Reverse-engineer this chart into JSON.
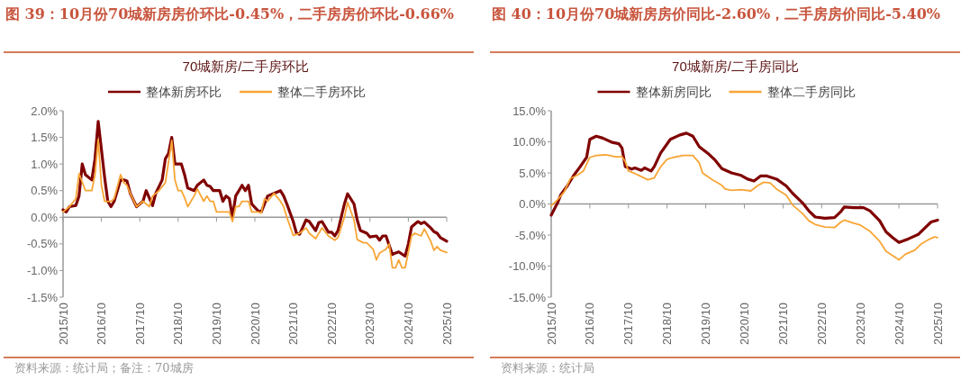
{
  "chart_data": [
    {
      "type": "line",
      "title": "图 39：10月份70城新房房价环比-0.45%，二手房房价环比-0.66%",
      "subtitle": "70城新房/二手房环比",
      "annotations": [
        "资料来源：统计局；备注：70城房"
      ],
      "legend": "top",
      "xlim": [
        "2015-10",
        "2025-10"
      ],
      "ylim": [
        -1.5,
        2.0
      ],
      "xticks": [
        {
          "value": "2015-10",
          "label": "2015/10"
        },
        {
          "value": "2016-10",
          "label": "2016/10"
        },
        {
          "value": "2017-10",
          "label": "2017/10"
        },
        {
          "value": "2018-10",
          "label": "2018/10"
        },
        {
          "value": "2019-10",
          "label": "2019/10"
        },
        {
          "value": "2020-10",
          "label": "2020/10"
        },
        {
          "value": "2021-10",
          "label": "2021/10"
        },
        {
          "value": "2022-10",
          "label": "2022/10"
        },
        {
          "value": "2023-10",
          "label": "2023/10"
        },
        {
          "value": "2024-10",
          "label": "2024/10"
        },
        {
          "value": "2025-10",
          "label": "2025/10"
        }
      ],
      "yticks": [
        {
          "value": -1.5,
          "label": "-1.5%"
        },
        {
          "value": -1.0,
          "label": "-1.0%"
        },
        {
          "value": -0.5,
          "label": "-0.5%"
        },
        {
          "value": 0,
          "label": "0.0%"
        },
        {
          "value": 0.5,
          "label": "0.5%"
        },
        {
          "value": 1.0,
          "label": "1.0%"
        },
        {
          "value": 1.5,
          "label": "1.5%"
        },
        {
          "value": 2.0,
          "label": "2.0%"
        }
      ],
      "series": [
        {
          "name": "整体新房环比",
          "color": "#800000",
          "x": [
            "2015-10",
            "2015-11",
            "2015-12",
            "2016-02",
            "2016-03",
            "2016-04",
            "2016-05",
            "2016-07",
            "2016-08",
            "2016-09",
            "2016-11",
            "2016-12",
            "2017-01",
            "2017-02",
            "2017-04",
            "2017-05",
            "2017-06",
            "2017-07",
            "2017-09",
            "2017-11",
            "2017-12",
            "2018-02",
            "2018-03",
            "2018-05",
            "2018-06",
            "2018-07",
            "2018-08",
            "2018-09",
            "2018-11",
            "2018-12",
            "2019-01",
            "2019-03",
            "2019-04",
            "2019-06",
            "2019-07",
            "2019-08",
            "2019-09",
            "2019-11",
            "2019-12",
            "2020-01",
            "2020-02",
            "2020-03",
            "2020-04",
            "2020-05",
            "2020-06",
            "2020-07",
            "2020-08",
            "2020-09",
            "2020-11",
            "2020-12",
            "2021-02",
            "2021-04",
            "2021-06",
            "2021-07",
            "2021-08",
            "2021-10",
            "2021-11",
            "2021-12",
            "2022-02",
            "2022-03",
            "2022-05",
            "2022-06",
            "2022-07",
            "2022-09",
            "2022-10",
            "2022-11",
            "2022-12",
            "2023-02",
            "2023-03",
            "2023-05",
            "2023-06",
            "2023-07",
            "2023-09",
            "2023-10",
            "2023-12",
            "2024-01",
            "2024-02",
            "2024-03",
            "2024-05",
            "2024-06",
            "2024-07",
            "2024-09",
            "2024-10",
            "2024-11",
            "2025-01",
            "2025-02",
            "2025-03",
            "2025-05",
            "2025-06",
            "2025-07",
            "2025-08",
            "2025-10"
          ],
          "values": [
            0.14,
            0.1,
            0.2,
            0.22,
            0.4,
            1.0,
            0.8,
            0.7,
            1.1,
            1.8,
            0.75,
            0.3,
            0.2,
            0.3,
            0.7,
            0.7,
            0.68,
            0.45,
            0.2,
            0.3,
            0.5,
            0.22,
            0.45,
            0.7,
            1.1,
            1.2,
            1.5,
            1.0,
            1.0,
            0.8,
            0.55,
            0.5,
            0.6,
            0.7,
            0.6,
            0.58,
            0.5,
            0.5,
            0.3,
            0.4,
            0.35,
            0.0,
            0.4,
            0.5,
            0.6,
            0.5,
            0.6,
            0.25,
            0.12,
            0.1,
            0.4,
            0.45,
            0.5,
            0.4,
            0.25,
            -0.08,
            -0.3,
            -0.32,
            -0.05,
            -0.08,
            -0.25,
            -0.1,
            -0.08,
            -0.28,
            -0.28,
            -0.35,
            -0.25,
            0.25,
            0.44,
            0.25,
            -0.05,
            -0.25,
            -0.3,
            -0.37,
            -0.35,
            -0.43,
            -0.35,
            -0.35,
            -0.7,
            -0.67,
            -0.65,
            -0.73,
            -0.5,
            -0.18,
            -0.08,
            -0.12,
            -0.09,
            -0.2,
            -0.27,
            -0.3,
            -0.38,
            -0.45
          ]
        },
        {
          "name": "整体二手房环比",
          "color": "#f8a535",
          "x": [
            "2015-10",
            "2015-12",
            "2016-02",
            "2016-03",
            "2016-05",
            "2016-07",
            "2016-08",
            "2016-09",
            "2016-10",
            "2016-11",
            "2017-01",
            "2017-02",
            "2017-04",
            "2017-05",
            "2017-06",
            "2017-07",
            "2017-09",
            "2017-11",
            "2018-01",
            "2018-02",
            "2018-04",
            "2018-06",
            "2018-08",
            "2018-09",
            "2018-10",
            "2018-11",
            "2018-12",
            "2019-01",
            "2019-03",
            "2019-04",
            "2019-06",
            "2019-07",
            "2019-08",
            "2019-09",
            "2019-10",
            "2020-01",
            "2020-02",
            "2020-03",
            "2020-04",
            "2020-05",
            "2020-06",
            "2020-08",
            "2020-09",
            "2020-11",
            "2020-12",
            "2021-01",
            "2021-02",
            "2021-04",
            "2021-06",
            "2021-07",
            "2021-08",
            "2021-10",
            "2021-12",
            "2022-01",
            "2022-02",
            "2022-03",
            "2022-05",
            "2022-07",
            "2022-09",
            "2022-11",
            "2022-12",
            "2023-02",
            "2023-03",
            "2023-05",
            "2023-06",
            "2023-08",
            "2023-09",
            "2023-11",
            "2023-12",
            "2024-01",
            "2024-03",
            "2024-04",
            "2024-05",
            "2024-06",
            "2024-07",
            "2024-08",
            "2024-09",
            "2024-11",
            "2024-12",
            "2025-02",
            "2025-03",
            "2025-05",
            "2025-06",
            "2025-07",
            "2025-08",
            "2025-10"
          ],
          "values": [
            0.1,
            0.2,
            0.35,
            0.82,
            0.5,
            0.5,
            0.8,
            1.46,
            0.6,
            0.3,
            0.3,
            0.35,
            0.8,
            0.65,
            0.6,
            0.45,
            0.2,
            0.3,
            0.2,
            0.4,
            0.5,
            0.65,
            1.44,
            0.7,
            0.5,
            0.5,
            0.37,
            0.2,
            0.4,
            0.53,
            0.3,
            0.4,
            0.3,
            0.3,
            0.1,
            0.1,
            0.1,
            -0.08,
            0.2,
            0.2,
            0.3,
            0.3,
            0.1,
            0.1,
            0.08,
            0.35,
            0.3,
            0.45,
            0.3,
            0.2,
            0.0,
            -0.34,
            -0.3,
            -0.25,
            -0.2,
            -0.3,
            -0.4,
            -0.2,
            -0.35,
            -0.43,
            -0.38,
            0.0,
            0.28,
            -0.05,
            -0.42,
            -0.48,
            -0.48,
            -0.6,
            -0.8,
            -0.67,
            -0.6,
            -0.5,
            -0.95,
            -0.95,
            -0.8,
            -0.95,
            -0.95,
            -0.35,
            -0.3,
            -0.35,
            -0.22,
            -0.45,
            -0.62,
            -0.55,
            -0.62,
            -0.66
          ]
        }
      ]
    },
    {
      "type": "line",
      "title": "图 40：10月份70城新房房价同比-2.60%，二手房房价同比-5.40%",
      "subtitle": "70城新房/二手房同比",
      "annotations": [
        "资料来源：统计局"
      ],
      "legend": "top",
      "xlim": [
        "2015-10",
        "2025-10"
      ],
      "ylim": [
        -15,
        15
      ],
      "xticks": [
        {
          "value": "2015-10",
          "label": "2015/10"
        },
        {
          "value": "2016-10",
          "label": "2016/10"
        },
        {
          "value": "2017-10",
          "label": "2017/10"
        },
        {
          "value": "2018-10",
          "label": "2018/10"
        },
        {
          "value": "2019-10",
          "label": "2019/10"
        },
        {
          "value": "2020-10",
          "label": "2020/10"
        },
        {
          "value": "2021-10",
          "label": "2021/10"
        },
        {
          "value": "2022-10",
          "label": "2022/10"
        },
        {
          "value": "2023-10",
          "label": "2023/10"
        },
        {
          "value": "2024-10",
          "label": "2024/10"
        },
        {
          "value": "2025-10",
          "label": "2025/10"
        }
      ],
      "yticks": [
        {
          "value": -15,
          "label": "-15.0%"
        },
        {
          "value": -10,
          "label": "-10.0%"
        },
        {
          "value": -5,
          "label": "-5.0%"
        },
        {
          "value": 0,
          "label": "0.0%"
        },
        {
          "value": 5,
          "label": "5.0%"
        },
        {
          "value": 10,
          "label": "10.0%"
        },
        {
          "value": 15,
          "label": "15.0%"
        }
      ],
      "series": [
        {
          "name": "整体新房同比",
          "color": "#800000",
          "x": [
            "2015-10",
            "2015-12",
            "2016-01",
            "2016-03",
            "2016-05",
            "2016-07",
            "2016-09",
            "2016-10",
            "2016-12",
            "2017-02",
            "2017-05",
            "2017-07",
            "2017-08",
            "2017-09",
            "2017-11",
            "2017-12",
            "2018-02",
            "2018-03",
            "2018-05",
            "2018-06",
            "2018-08",
            "2018-11",
            "2019-02",
            "2019-04",
            "2019-06",
            "2019-08",
            "2019-11",
            "2020-01",
            "2020-03",
            "2020-06",
            "2020-09",
            "2020-11",
            "2021-01",
            "2021-03",
            "2021-05",
            "2021-08",
            "2021-11",
            "2022-01",
            "2022-04",
            "2022-06",
            "2022-08",
            "2022-11",
            "2023-02",
            "2023-04",
            "2023-05",
            "2023-08",
            "2023-11",
            "2024-01",
            "2024-04",
            "2024-06",
            "2024-08",
            "2024-10",
            "2025-01",
            "2025-04",
            "2025-06",
            "2025-08",
            "2025-10"
          ],
          "values": [
            -1.8,
            0.2,
            1.5,
            2.9,
            4.6,
            6.0,
            7.5,
            10.4,
            10.9,
            10.6,
            9.9,
            9.7,
            9.0,
            6.0,
            5.6,
            5.8,
            5.4,
            5.8,
            5.3,
            6.0,
            8.2,
            10.4,
            11.1,
            11.4,
            10.9,
            9.2,
            8.0,
            7.0,
            5.7,
            5.0,
            4.6,
            4.0,
            3.7,
            4.5,
            4.5,
            4.0,
            2.9,
            1.7,
            0.2,
            -1.1,
            -2.1,
            -2.3,
            -2.2,
            -1.2,
            -0.5,
            -0.6,
            -0.6,
            -1.1,
            -2.7,
            -4.5,
            -5.4,
            -6.2,
            -5.6,
            -4.9,
            -3.9,
            -2.9,
            -2.6
          ]
        },
        {
          "name": "整体二手房同比",
          "color": "#f8a535",
          "x": [
            "2015-10",
            "2015-12",
            "2016-02",
            "2016-04",
            "2016-06",
            "2016-08",
            "2016-10",
            "2016-12",
            "2017-03",
            "2017-06",
            "2017-08",
            "2017-09",
            "2017-10",
            "2017-12",
            "2018-02",
            "2018-04",
            "2018-06",
            "2018-08",
            "2018-10",
            "2018-12",
            "2019-03",
            "2019-06",
            "2019-08",
            "2019-09",
            "2019-12",
            "2020-03",
            "2020-04",
            "2020-06",
            "2020-09",
            "2020-12",
            "2021-02",
            "2021-04",
            "2021-06",
            "2021-08",
            "2021-11",
            "2022-01",
            "2022-04",
            "2022-06",
            "2022-08",
            "2022-11",
            "2023-02",
            "2023-04",
            "2023-05",
            "2023-08",
            "2023-10",
            "2024-01",
            "2024-04",
            "2024-06",
            "2024-08",
            "2024-10",
            "2024-12",
            "2025-03",
            "2025-05",
            "2025-07",
            "2025-09",
            "2025-10"
          ],
          "values": [
            -0.3,
            0.7,
            1.9,
            4.1,
            4.6,
            5.3,
            7.5,
            7.8,
            7.9,
            7.6,
            7.6,
            6.8,
            5.3,
            4.9,
            4.4,
            3.9,
            4.2,
            6.0,
            7.2,
            7.5,
            7.8,
            7.8,
            6.6,
            5.0,
            3.9,
            3.0,
            2.4,
            2.2,
            2.3,
            2.1,
            2.9,
            3.5,
            3.4,
            2.4,
            1.4,
            -0.2,
            -1.5,
            -2.7,
            -3.3,
            -3.7,
            -3.8,
            -2.9,
            -2.6,
            -3.1,
            -3.4,
            -4.4,
            -6.0,
            -7.6,
            -8.3,
            -9.0,
            -8.1,
            -7.4,
            -6.4,
            -5.8,
            -5.3,
            -5.4
          ]
        }
      ]
    }
  ]
}
